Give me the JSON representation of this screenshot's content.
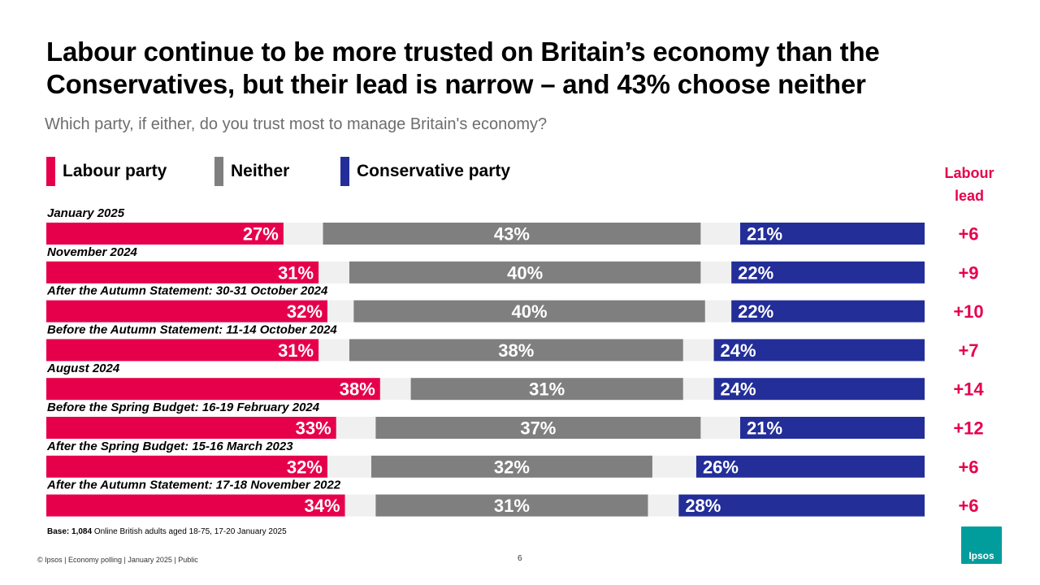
{
  "title": "Labour continue to be more trusted on Britain’s economy than the Conservatives, but their lead is narrow – and 43% choose neither",
  "subtitle": "Which party, if either, do you trust most to manage Britain's economy?",
  "colors": {
    "labour": "#e6004c",
    "neither": "#7f7f7f",
    "conservative": "#232e99",
    "gap": "#f0f0f0",
    "lead": "#e6004c"
  },
  "chart_data": {
    "type": "bar",
    "orientation": "horizontal",
    "stacked": true,
    "legend": [
      "Labour party",
      "Neither",
      "Conservative party"
    ],
    "lead_header": [
      "Labour",
      "lead"
    ],
    "categories": [
      "January 2025",
      "November 2024",
      "After the Autumn Statement: 30-31 October 2024",
      "Before the Autumn Statement: 11-14 October 2024",
      "August 2024",
      "Before the Spring Budget: 16-19 February 2024",
      "After the Spring Budget: 15-16 March 2023",
      "After the Autumn Statement: 17-18 November 2022"
    ],
    "series": [
      {
        "name": "Labour party",
        "values": [
          27,
          31,
          32,
          31,
          38,
          33,
          32,
          34
        ]
      },
      {
        "name": "Neither",
        "values": [
          43,
          40,
          40,
          38,
          31,
          37,
          32,
          31
        ]
      },
      {
        "name": "Conservative party",
        "values": [
          21,
          22,
          22,
          24,
          24,
          21,
          26,
          28
        ]
      }
    ],
    "labour_lead": [
      "+6",
      "+9",
      "+10",
      "+7",
      "+14",
      "+12",
      "+6",
      "+6"
    ],
    "xlim": [
      0,
      100
    ]
  },
  "base": {
    "bold": "Base: 1,084",
    "text": " Online British adults aged 18-75, 17-20 January 2025"
  },
  "footer": "© Ipsos | Economy polling | January 2025 | Public",
  "page_number": "6",
  "logo_text": "Ipsos"
}
